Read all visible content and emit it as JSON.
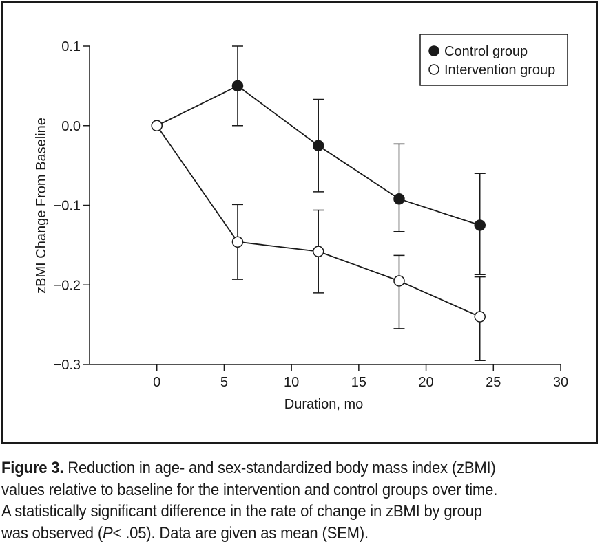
{
  "chart_data": {
    "type": "line",
    "xlabel": "Duration, mo",
    "ylabel": "zBMI Change From Baseline",
    "xlim": [
      -5,
      30
    ],
    "ylim": [
      -0.3,
      0.1
    ],
    "xticks": [
      0,
      5,
      10,
      15,
      20,
      25,
      30
    ],
    "xtick_labels": [
      "0",
      "5",
      "10",
      "15",
      "20",
      "25",
      "30"
    ],
    "yticks": [
      0.1,
      0.0,
      -0.1,
      -0.2,
      -0.3
    ],
    "ytick_labels": [
      "0.1",
      "0.0",
      "−0.1",
      "−0.2",
      "−0.3"
    ],
    "legend_position": "top-right",
    "grid": false,
    "series": [
      {
        "name": "Control group",
        "marker": "filled-circle",
        "color": "#1a1a1a",
        "points": [
          {
            "x": 0,
            "y": 0.0,
            "err_low": null,
            "err_high": null
          },
          {
            "x": 6,
            "y": 0.05,
            "err_low": 0.0,
            "err_high": 0.1
          },
          {
            "x": 12,
            "y": -0.025,
            "err_low": -0.083,
            "err_high": 0.033
          },
          {
            "x": 18,
            "y": -0.092,
            "err_low": -0.133,
            "err_high": -0.023
          },
          {
            "x": 24,
            "y": -0.125,
            "err_low": -0.187,
            "err_high": -0.06
          }
        ]
      },
      {
        "name": "Intervention group",
        "marker": "open-circle",
        "color": "#1a1a1a",
        "points": [
          {
            "x": 0,
            "y": 0.0,
            "err_low": null,
            "err_high": null
          },
          {
            "x": 6,
            "y": -0.146,
            "err_low": -0.193,
            "err_high": -0.099
          },
          {
            "x": 12,
            "y": -0.158,
            "err_low": -0.21,
            "err_high": -0.106
          },
          {
            "x": 18,
            "y": -0.195,
            "err_low": -0.255,
            "err_high": -0.163
          },
          {
            "x": 24,
            "y": -0.24,
            "err_low": -0.295,
            "err_high": -0.19
          }
        ]
      }
    ]
  },
  "caption": {
    "label": "Figure 3.",
    "line1": "Reduction in age- and sex-standardized body mass index (zBMI)",
    "line2": "values relative to baseline for the intervention and control groups over time.",
    "line3": "A statistically significant difference in the rate of change in zBMI by group",
    "line4_before": "was observed (",
    "p_letter": "P",
    "line4_after": "< .05). Data are given as mean (SEM)."
  }
}
